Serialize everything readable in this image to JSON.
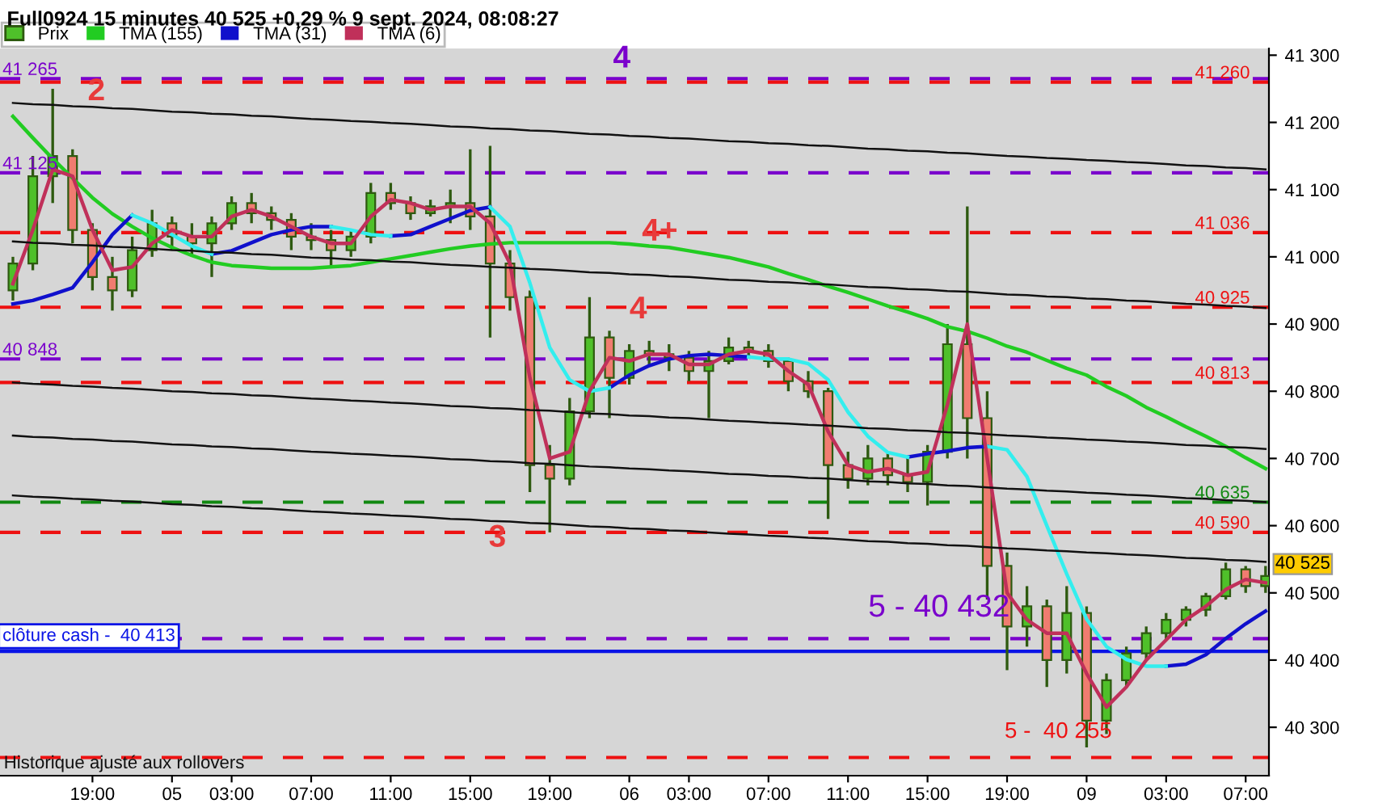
{
  "chart_data": {
    "type": "candlestick",
    "title": "Full0924 15 minutes 40 525 +0,29 % 9 sept. 2024, 08:08:27",
    "categories": [
      null,
      null,
      null,
      null,
      "19:00",
      null,
      null,
      null,
      "05",
      null,
      null,
      "03:00",
      null,
      null,
      null,
      "07:00",
      null,
      null,
      null,
      "11:00",
      null,
      null,
      null,
      "15:00",
      null,
      null,
      null,
      "19:00",
      null,
      null,
      null,
      "06",
      null,
      null,
      "03:00",
      null,
      null,
      null,
      "07:00",
      null,
      null,
      null,
      "11:00",
      null,
      null,
      null,
      "15:00",
      null,
      null,
      null,
      "19:00",
      null,
      null,
      null,
      "09",
      null,
      null,
      null,
      "03:00",
      null,
      null,
      null,
      "07:00",
      null
    ],
    "series": [
      {
        "name": "Prix",
        "color": "#2e5a10",
        "colors": [
          "#4fc02a",
          "#4fc02a",
          "#4fc02a",
          "#f07c70",
          "#f07c70",
          "#f07c70",
          "#4fc02a",
          "#4fc02a",
          "#f07c70",
          "#f07c70",
          "#4fc02a",
          "#4fc02a",
          "#f07c70",
          "#f07c70",
          "#f07c70",
          "#f07c70",
          "#f07c70",
          "#4fc02a",
          "#4fc02a",
          "#f07c70",
          "#f07c70",
          "#4fc02a",
          "#4fc02a",
          "#f07c70",
          "#f07c70",
          "#f07c70",
          "#f07c70",
          "#f07c70",
          "#4fc02a",
          "#4fc02a",
          "#f07c70",
          "#4fc02a",
          "#f07c70",
          "#f07c70",
          "#f07c70",
          "#4fc02a",
          "#4fc02a",
          "#f07c70",
          "#f07c70",
          "#f07c70",
          "#f07c70",
          "#f07c70",
          "#f07c70",
          "#4fc02a",
          "#f07c70",
          "#f07c70",
          "#4fc02a",
          "#4fc02a",
          "#f07c70",
          "#f07c70",
          "#f07c70",
          "#4fc02a",
          "#f07c70",
          "#4fc02a",
          "#f07c70",
          "#4fc02a",
          "#4fc02a",
          "#4fc02a",
          "#4fc02a",
          "#4fc02a",
          "#4fc02a",
          "#4fc02a",
          "#f07c70",
          "#4fc02a"
        ],
        "ohlc": [
          [
            40950,
            41000,
            40935,
            40990
          ],
          [
            40990,
            41150,
            40980,
            41120
          ],
          [
            41120,
            41250,
            41080,
            41150
          ],
          [
            41150,
            41160,
            41020,
            41040
          ],
          [
            41040,
            41050,
            40950,
            40970
          ],
          [
            40970,
            41000,
            40920,
            40950
          ],
          [
            40950,
            41030,
            40940,
            41010
          ],
          [
            41010,
            41070,
            41000,
            41050
          ],
          [
            41050,
            41060,
            41010,
            41030
          ],
          [
            41030,
            41050,
            41000,
            41020
          ],
          [
            41020,
            41060,
            40970,
            41050
          ],
          [
            41050,
            41090,
            41040,
            41080
          ],
          [
            41080,
            41095,
            41050,
            41065
          ],
          [
            41065,
            41075,
            41040,
            41055
          ],
          [
            41055,
            41065,
            41010,
            41030
          ],
          [
            41030,
            41050,
            41010,
            41025
          ],
          [
            41025,
            41040,
            40985,
            41010
          ],
          [
            41010,
            41040,
            41000,
            41030
          ],
          [
            41030,
            41110,
            41020,
            41095
          ],
          [
            41095,
            41110,
            41070,
            41080
          ],
          [
            41080,
            41090,
            41055,
            41065
          ],
          [
            41065,
            41085,
            41060,
            41075
          ],
          [
            41075,
            41100,
            41050,
            41080
          ],
          [
            41080,
            41160,
            41040,
            41060
          ],
          [
            41060,
            41165,
            40880,
            40990
          ],
          [
            40990,
            41010,
            40920,
            40940
          ],
          [
            40940,
            40950,
            40650,
            40690
          ],
          [
            40690,
            40720,
            40590,
            40670
          ],
          [
            40670,
            40790,
            40660,
            40770
          ],
          [
            40770,
            40940,
            40760,
            40880
          ],
          [
            40880,
            40890,
            40760,
            40820
          ],
          [
            40820,
            40870,
            40810,
            40860
          ],
          [
            40860,
            40875,
            40840,
            40855
          ],
          [
            40855,
            40870,
            40830,
            40850
          ],
          [
            40850,
            40860,
            40815,
            40830
          ],
          [
            40830,
            40860,
            40760,
            40845
          ],
          [
            40845,
            40880,
            40840,
            40865
          ],
          [
            40865,
            40875,
            40850,
            40860
          ],
          [
            40860,
            40870,
            40835,
            40845
          ],
          [
            40845,
            40850,
            40800,
            40815
          ],
          [
            40815,
            40830,
            40790,
            40800
          ],
          [
            40800,
            40805,
            40610,
            40690
          ],
          [
            40690,
            40710,
            40655,
            40670
          ],
          [
            40670,
            40720,
            40660,
            40700
          ],
          [
            40700,
            40710,
            40660,
            40675
          ],
          [
            40675,
            40700,
            40650,
            40665
          ],
          [
            40665,
            40720,
            40630,
            40710
          ],
          [
            40710,
            40900,
            40700,
            40870
          ],
          [
            40870,
            41075,
            40700,
            40760
          ],
          [
            40760,
            40800,
            40490,
            40540
          ],
          [
            40540,
            40560,
            40385,
            40450
          ],
          [
            40450,
            40510,
            40420,
            40480
          ],
          [
            40480,
            40490,
            40360,
            40400
          ],
          [
            40400,
            40510,
            40380,
            40470
          ],
          [
            40470,
            40480,
            40270,
            40310
          ],
          [
            40310,
            40380,
            40290,
            40370
          ],
          [
            40370,
            40420,
            40360,
            40410
          ],
          [
            40410,
            40450,
            40400,
            40440
          ],
          [
            40440,
            40470,
            40430,
            40460
          ],
          [
            40460,
            40480,
            40450,
            40475
          ],
          [
            40475,
            40500,
            40465,
            40495
          ],
          [
            40495,
            40545,
            40490,
            40535
          ],
          [
            40535,
            40540,
            40500,
            40510
          ],
          [
            40510,
            40540,
            40500,
            40525
          ]
        ]
      },
      {
        "name": "TMA (155)",
        "type": "line",
        "color": "#22cc22",
        "values": [
          41209,
          41177,
          41146,
          41117,
          41088,
          41064,
          41045,
          41028,
          41014,
          41002,
          40992,
          40987,
          40985,
          40983,
          40983,
          40983,
          40985,
          40987,
          40992,
          40997,
          41002,
          41007,
          41012,
          41016,
          41019,
          41021,
          41021,
          41021,
          41021,
          41021,
          41021,
          41019,
          41016,
          41014,
          41009,
          41004,
          40999,
          40992,
          40985,
          40975,
          40966,
          40956,
          40947,
          40937,
          40927,
          40918,
          40908,
          40896,
          40889,
          40879,
          40867,
          40858,
          40846,
          40834,
          40824,
          40807,
          40793,
          40776,
          40762,
          40747,
          40733,
          40718,
          40701,
          40685
        ]
      },
      {
        "name": "TMA (31)",
        "type": "line",
        "color": "#1010cc",
        "values": [
          40930,
          40935,
          40944,
          40954,
          40992,
          41033,
          41062,
          null,
          null,
          null,
          41004,
          41009,
          41021,
          41033,
          41040,
          41045,
          41045,
          null,
          null,
          41031,
          41033,
          41045,
          41057,
          41069,
          41074,
          null,
          null,
          null,
          null,
          null,
          40805,
          40824,
          40838,
          40848,
          40853,
          40855,
          40853,
          40851,
          null,
          null,
          null,
          null,
          null,
          null,
          null,
          40702,
          40707,
          40711,
          40716,
          40718,
          null,
          null,
          null,
          null,
          null,
          null,
          null,
          null,
          40391,
          40394,
          40408,
          40432,
          40454,
          40473
        ]
      },
      {
        "type": "line",
        "color": "#33eeee",
        "values": [
          null,
          null,
          null,
          null,
          null,
          null,
          41062,
          41050,
          41033,
          41016,
          41004,
          null,
          null,
          null,
          null,
          null,
          41045,
          41040,
          41033,
          41031,
          null,
          null,
          null,
          null,
          41074,
          41045,
          40961,
          40865,
          40817,
          40800,
          40805,
          null,
          null,
          null,
          null,
          null,
          null,
          40851,
          40848,
          40848,
          40841,
          40817,
          40769,
          40733,
          40709,
          40702,
          null,
          null,
          null,
          40718,
          40713,
          40673,
          40600,
          40528,
          40461,
          40420,
          40401,
          40391,
          40391,
          null,
          null,
          null,
          null,
          null
        ]
      },
      {
        "name": "TMA (6)",
        "type": "line",
        "color": "#c0305a",
        "values": [
          40960,
          41040,
          41130,
          41120,
          41040,
          40980,
          40985,
          41020,
          41040,
          41030,
          41030,
          41060,
          41070,
          41060,
          41045,
          41030,
          41020,
          41020,
          41060,
          41085,
          41080,
          41070,
          41075,
          41075,
          41050,
          40990,
          40820,
          40700,
          40710,
          40800,
          40850,
          40845,
          40855,
          40855,
          40840,
          40840,
          40855,
          40860,
          40855,
          40830,
          40810,
          40740,
          40690,
          40680,
          40685,
          40675,
          40680,
          40780,
          40900,
          40700,
          40500,
          40460,
          40440,
          40440,
          40380,
          40330,
          40360,
          40400,
          40430,
          40460,
          40480,
          40505,
          40520,
          40515
        ]
      },
      {
        "type": "line",
        "color": "#111111",
        "values": [
          41229,
          41227,
          41226,
          41224,
          41223,
          41221,
          41220,
          41218,
          41216,
          41215,
          41213,
          41212,
          41210,
          41209,
          41207,
          41205,
          41204,
          41202,
          41201,
          41199,
          41198,
          41196,
          41194,
          41193,
          41191,
          41190,
          41188,
          41187,
          41185,
          41183,
          41182,
          41180,
          41179,
          41177,
          41176,
          41174,
          41172,
          41171,
          41169,
          41168,
          41166,
          41165,
          41163,
          41161,
          41160,
          41158,
          41157,
          41155,
          41154,
          41152,
          41150,
          41149,
          41147,
          41146,
          41144,
          41143,
          41141,
          41140,
          41138,
          41136,
          41135,
          41133,
          41132,
          41130
        ]
      },
      {
        "type": "line",
        "color": "#111111",
        "values": [
          41023,
          41021,
          41020,
          41018,
          41017,
          41015,
          41014,
          41012,
          41010,
          41009,
          41007,
          41006,
          41004,
          41003,
          41001,
          40999,
          40998,
          40996,
          40995,
          40993,
          40992,
          40990,
          40988,
          40987,
          40985,
          40984,
          40982,
          40981,
          40979,
          40977,
          40976,
          40974,
          40973,
          40971,
          40970,
          40968,
          40966,
          40965,
          40963,
          40962,
          40960,
          40959,
          40957,
          40955,
          40954,
          40952,
          40951,
          40949,
          40948,
          40946,
          40944,
          40943,
          40941,
          40940,
          40938,
          40937,
          40935,
          40934,
          40932,
          40930,
          40929,
          40927,
          40926,
          40924
        ]
      },
      {
        "type": "line",
        "color": "#111111",
        "values": [
          40813,
          40811,
          40810,
          40808,
          40807,
          40805,
          40804,
          40802,
          40800,
          40799,
          40797,
          40796,
          40794,
          40793,
          40791,
          40789,
          40788,
          40786,
          40785,
          40783,
          40782,
          40780,
          40778,
          40777,
          40775,
          40774,
          40772,
          40771,
          40769,
          40767,
          40766,
          40764,
          40763,
          40761,
          40760,
          40758,
          40756,
          40755,
          40753,
          40752,
          40750,
          40749,
          40747,
          40745,
          40744,
          40742,
          40741,
          40739,
          40738,
          40736,
          40734,
          40733,
          40731,
          40730,
          40728,
          40727,
          40725,
          40724,
          40722,
          40720,
          40719,
          40717,
          40716,
          40714
        ]
      },
      {
        "type": "line",
        "color": "#111111",
        "values": [
          40734,
          40732,
          40731,
          40729,
          40728,
          40726,
          40725,
          40723,
          40721,
          40720,
          40718,
          40717,
          40715,
          40714,
          40712,
          40710,
          40709,
          40707,
          40706,
          40704,
          40703,
          40701,
          40699,
          40698,
          40696,
          40695,
          40693,
          40692,
          40690,
          40688,
          40687,
          40685,
          40684,
          40682,
          40681,
          40679,
          40677,
          40676,
          40674,
          40673,
          40671,
          40670,
          40668,
          40666,
          40665,
          40663,
          40662,
          40660,
          40659,
          40657,
          40655,
          40654,
          40652,
          40651,
          40649,
          40648,
          40646,
          40645,
          40643,
          40641,
          40640,
          40638,
          40637,
          40635
        ]
      },
      {
        "type": "line",
        "color": "#111111",
        "values": [
          40645,
          40643,
          40642,
          40640,
          40639,
          40637,
          40636,
          40634,
          40632,
          40631,
          40629,
          40628,
          40626,
          40625,
          40623,
          40621,
          40620,
          40618,
          40617,
          40615,
          40614,
          40612,
          40610,
          40609,
          40607,
          40606,
          40604,
          40603,
          40601,
          40599,
          40598,
          40596,
          40595,
          40593,
          40592,
          40590,
          40588,
          40587,
          40585,
          40584,
          40582,
          40581,
          40579,
          40577,
          40576,
          40574,
          40573,
          40571,
          40570,
          40568,
          40566,
          40565,
          40563,
          40562,
          40560,
          40559,
          40557,
          40556,
          40554,
          40552,
          40551,
          40549,
          40548,
          40546
        ]
      }
    ],
    "ylim": [
      40228,
      41310
    ],
    "yticks": [
      {
        "value": 40300,
        "label": "40 300"
      },
      {
        "value": 40400,
        "label": "40 400"
      },
      {
        "value": 40500,
        "label": "40 500"
      },
      {
        "value": 40600,
        "label": "40 600"
      },
      {
        "value": 40700,
        "label": "40 700"
      },
      {
        "value": 40800,
        "label": "40 800"
      },
      {
        "value": 40900,
        "label": "40 900"
      },
      {
        "value": 41000,
        "label": "41 000"
      },
      {
        "value": 41100,
        "label": "41 100"
      },
      {
        "value": 41200,
        "label": "41 200"
      },
      {
        "value": 41300,
        "label": "41 300"
      }
    ],
    "ref_lines": [
      {
        "axis": "y",
        "value": 41265,
        "label": "41 265",
        "color": "#7a00cc",
        "line_style": "dashed"
      },
      {
        "axis": "y",
        "value": 41260,
        "label": "41 260",
        "color": "#ee1111",
        "line_style": "dashed"
      },
      {
        "axis": "y",
        "value": 41125,
        "label": "41 125",
        "color": "#7a00cc",
        "line_style": "dashed"
      },
      {
        "axis": "y",
        "value": 41036,
        "label": "41 036",
        "color": "#ee1111",
        "line_style": "dashed"
      },
      {
        "axis": "y",
        "value": 40925,
        "label": "40 925",
        "color": "#ee1111",
        "line_style": "dashed"
      },
      {
        "axis": "y",
        "value": 40848,
        "label": "40 848",
        "color": "#7a00cc",
        "line_style": "dashed"
      },
      {
        "axis": "y",
        "value": 40813,
        "label": "40 813",
        "color": "#ee1111",
        "line_style": "dashed"
      },
      {
        "axis": "y",
        "value": 40635,
        "label": "40 635",
        "color": "#118811",
        "line_style": "dashed"
      },
      {
        "axis": "y",
        "value": 40590,
        "label": "40 590",
        "color": "#ee1111",
        "line_style": "dashed"
      },
      {
        "axis": "y",
        "value": 40432,
        "color": "#7a00cc",
        "line_style": "dashed"
      },
      {
        "axis": "y",
        "value": 40413,
        "label": "clôture cash -  40 413",
        "color": "#0a14e6",
        "line_style": "solid"
      },
      {
        "axis": "y",
        "value": 40255,
        "color": "#ee1111",
        "line_style": "dashed"
      }
    ],
    "annotations": [
      "2",
      "4",
      "4+",
      "4",
      "3",
      "5 - 40 432",
      "5 -  40 255",
      "40 525",
      "Historique ajusté aux rollovers"
    ],
    "legend": "top left",
    "grid": false
  }
}
